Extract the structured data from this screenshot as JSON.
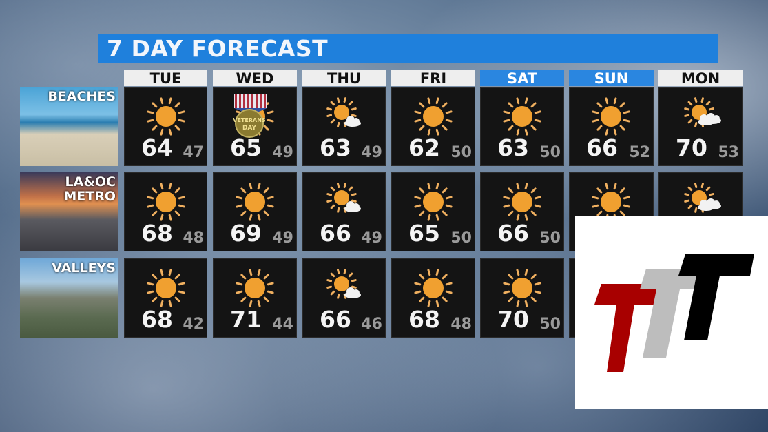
{
  "title": "7 DAY FORECAST",
  "colors": {
    "title_bar": "#1f80dc",
    "weekend_header": "#2a86e0",
    "sun": "#f0a030",
    "high": "#f4f4f4",
    "low": "#9a9a9a"
  },
  "days": [
    {
      "label": "TUE",
      "weekend": false
    },
    {
      "label": "WED",
      "weekend": false
    },
    {
      "label": "THU",
      "weekend": false
    },
    {
      "label": "FRI",
      "weekend": false
    },
    {
      "label": "SAT",
      "weekend": true
    },
    {
      "label": "SUN",
      "weekend": true
    },
    {
      "label": "MON",
      "weekend": false
    }
  ],
  "regions": [
    {
      "label": "BEACHES",
      "forecast": [
        {
          "icon": "sun-icon",
          "hi": "64",
          "lo": "47"
        },
        {
          "icon": "sun-icon",
          "hi": "65",
          "lo": "49",
          "badge": "VETERANS DAY"
        },
        {
          "icon": "partly-sunny-icon",
          "hi": "63",
          "lo": "49"
        },
        {
          "icon": "sun-icon",
          "hi": "62",
          "lo": "50"
        },
        {
          "icon": "sun-icon",
          "hi": "63",
          "lo": "50"
        },
        {
          "icon": "sun-icon",
          "hi": "66",
          "lo": "52"
        },
        {
          "icon": "partly-cloudy-icon",
          "hi": "70",
          "lo": "53"
        }
      ]
    },
    {
      "label": "LA&OC METRO",
      "forecast": [
        {
          "icon": "sun-icon",
          "hi": "68",
          "lo": "48"
        },
        {
          "icon": "sun-icon",
          "hi": "69",
          "lo": "49"
        },
        {
          "icon": "partly-sunny-icon",
          "hi": "66",
          "lo": "49"
        },
        {
          "icon": "sun-icon",
          "hi": "65",
          "lo": "50"
        },
        {
          "icon": "sun-icon",
          "hi": "66",
          "lo": "50"
        },
        {
          "icon": "sun-icon",
          "hi": "",
          "lo": ""
        },
        {
          "icon": "partly-cloudy-icon",
          "hi": "",
          "lo": ""
        }
      ]
    },
    {
      "label": "VALLEYS",
      "forecast": [
        {
          "icon": "sun-icon",
          "hi": "68",
          "lo": "42"
        },
        {
          "icon": "sun-icon",
          "hi": "71",
          "lo": "44"
        },
        {
          "icon": "partly-sunny-icon",
          "hi": "66",
          "lo": "46"
        },
        {
          "icon": "sun-icon",
          "hi": "68",
          "lo": "48"
        },
        {
          "icon": "sun-icon",
          "hi": "70",
          "lo": "50"
        },
        {
          "icon": "sun-icon",
          "hi": "",
          "lo": ""
        },
        {
          "icon": "sun-icon",
          "hi": "",
          "lo": ""
        }
      ]
    }
  ],
  "logo": {
    "text": "TTT",
    "colors": [
      "#a80000",
      "#bdbdbd",
      "#000000"
    ]
  }
}
